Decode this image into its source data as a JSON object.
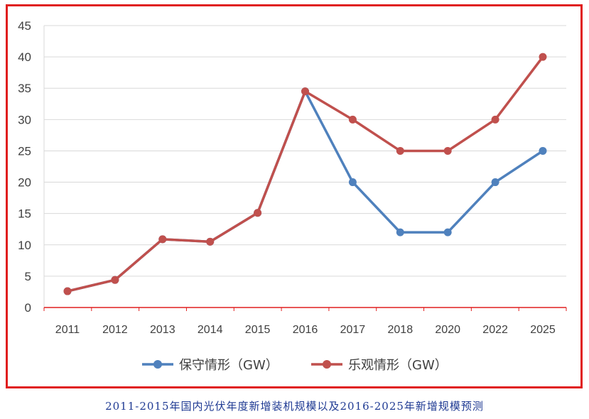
{
  "chart_data": {
    "type": "line",
    "categories": [
      "2011",
      "2012",
      "2013",
      "2014",
      "2015",
      "2016",
      "2017",
      "2018",
      "2020",
      "2022",
      "2025"
    ],
    "series": [
      {
        "name": "保守情形（GW）",
        "color": "#4f81bd",
        "values": [
          2.6,
          4.4,
          10.9,
          10.5,
          15.1,
          34.5,
          20,
          12,
          12,
          20,
          25
        ]
      },
      {
        "name": "乐观情形（GW）",
        "color": "#c0504d",
        "values": [
          2.6,
          4.4,
          10.9,
          10.5,
          15.1,
          34.5,
          30,
          25,
          25,
          30,
          40
        ]
      }
    ],
    "ylim": [
      0,
      45
    ],
    "yticks": [
      0,
      5,
      10,
      15,
      20,
      25,
      30,
      35,
      40,
      45
    ],
    "grid": true,
    "legend_position": "bottom"
  },
  "caption": "2011-2015年国内光伏年度新增装机规模以及2016-2025年新增规模预测"
}
